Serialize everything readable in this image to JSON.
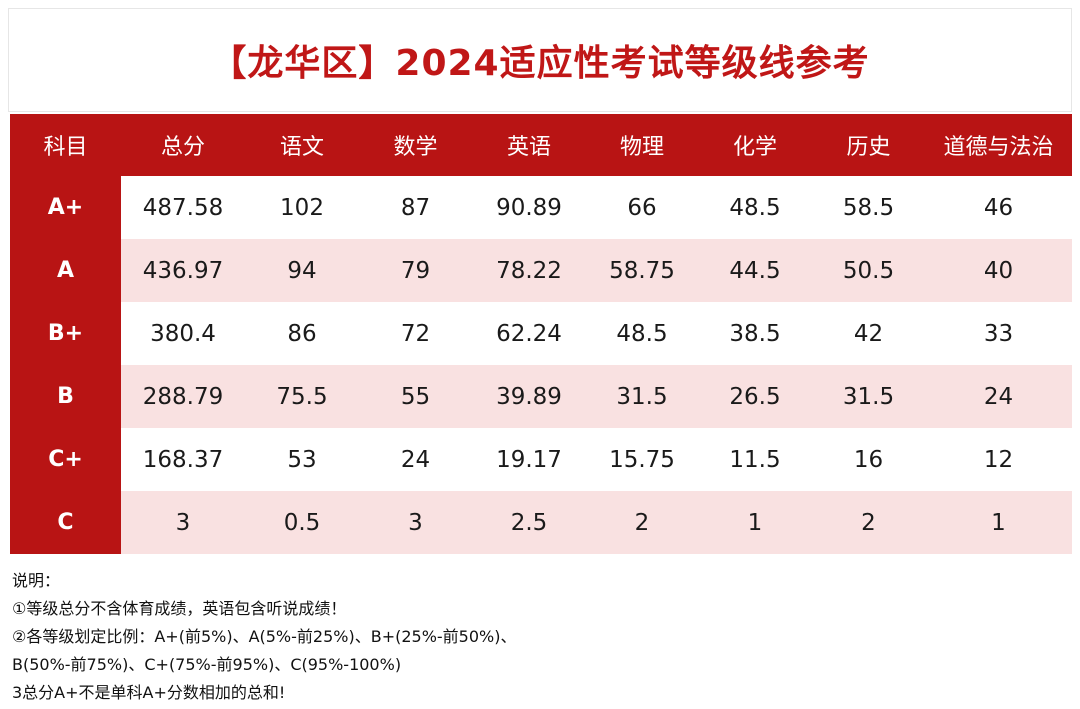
{
  "title": "【龙华区】2024适应性考试等级线参考",
  "table": {
    "headers": [
      "科目",
      "总分",
      "语文",
      "数学",
      "英语",
      "物理",
      "化学",
      "历史",
      "道德与法治"
    ],
    "rows": [
      {
        "grade": "A+",
        "values": [
          "487.58",
          "102",
          "87",
          "90.89",
          "66",
          "48.5",
          "58.5",
          "46"
        ]
      },
      {
        "grade": "A",
        "values": [
          "436.97",
          "94",
          "79",
          "78.22",
          "58.75",
          "44.5",
          "50.5",
          "40"
        ]
      },
      {
        "grade": "B+",
        "values": [
          "380.4",
          "86",
          "72",
          "62.24",
          "48.5",
          "38.5",
          "42",
          "33"
        ]
      },
      {
        "grade": "B",
        "values": [
          "288.79",
          "75.5",
          "55",
          "39.89",
          "31.5",
          "26.5",
          "31.5",
          "24"
        ]
      },
      {
        "grade": "C+",
        "values": [
          "168.37",
          "53",
          "24",
          "19.17",
          "15.75",
          "11.5",
          "16",
          "12"
        ]
      },
      {
        "grade": "C",
        "values": [
          "3",
          "0.5",
          "3",
          "2.5",
          "2",
          "1",
          "2",
          "1"
        ]
      }
    ]
  },
  "notes": {
    "heading": "说明：",
    "lines": [
      "①等级总分不含体育成绩，英语包含听说成绩！",
      "②各等级划定比例：A+(前5%)、A(5%-前25%)、B+(25%-前50%)、",
      "B(50%-前75%)、C+(75%-前95%)、C(95%-100%)",
      "3总分A+不是单科A+分数相加的总和!"
    ]
  },
  "colors": {
    "accent": "#b81414",
    "title": "#c01717",
    "stripe": "#f9e1e1"
  }
}
